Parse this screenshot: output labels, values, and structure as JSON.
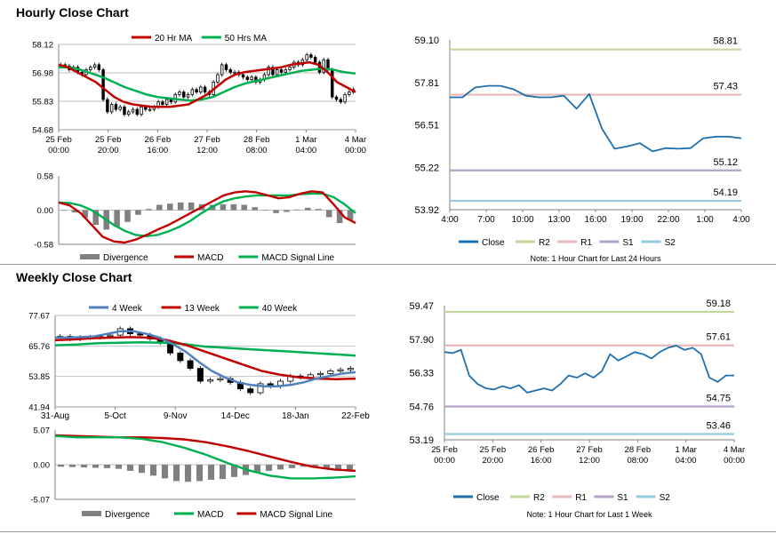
{
  "hourly_title": "Hourly Close Chart",
  "weekly_title": "Weekly Close Chart",
  "colors": {
    "ma_short": "#c00000",
    "ma_long": "#00b050",
    "close": "#1f6fae",
    "close_weekly": "#4f81bd",
    "r2": "#c3d69b",
    "r1": "#e6b9b8",
    "s1": "#b3a2c7",
    "s2": "#93cddd",
    "divergence": "#808080",
    "axis": "#808080"
  },
  "chart_data": [
    {
      "id": "hourly-candle",
      "type": "candlestick",
      "legend": [
        "20 Hr MA",
        "50 Hrs MA"
      ],
      "ylim": [
        54.68,
        58.12
      ],
      "yticks": [
        "58.12",
        "56.98",
        "55.83",
        "54.68"
      ],
      "xticks": [
        [
          "25 Feb",
          "00:00"
        ],
        [
          "25 Feb",
          "20:00"
        ],
        [
          "26 Feb",
          "16:00"
        ],
        [
          "27 Feb",
          "12:00"
        ],
        [
          "28 Feb",
          "08:00"
        ],
        [
          "1 Mar",
          "04:00"
        ],
        [
          "4 Mar",
          "00:00"
        ]
      ],
      "close": [
        57.3,
        57.25,
        57.1,
        57.2,
        57.0,
        56.9,
        57.1,
        57.2,
        57.3,
        57.1,
        55.9,
        55.4,
        55.7,
        55.5,
        55.6,
        55.3,
        55.4,
        55.5,
        55.3,
        55.6,
        55.5,
        55.5,
        55.6,
        55.8,
        55.7,
        55.9,
        55.8,
        56.1,
        56.2,
        56.0,
        56.1,
        56.3,
        56.2,
        56.4,
        56.2,
        56.1,
        56.6,
        56.9,
        57.3,
        57.1,
        57.0,
        57.0,
        56.9,
        56.8,
        56.7,
        56.8,
        56.6,
        56.7,
        56.9,
        57.2,
        56.9,
        57.1,
        57.0,
        57.1,
        57.2,
        57.4,
        57.3,
        57.5,
        57.7,
        57.6,
        57.4,
        57.0,
        57.5,
        57.1,
        56.0,
        55.9,
        55.8,
        56.1,
        56.2,
        56.3
      ],
      "ma20": [
        57.3,
        57.2,
        57.0,
        56.8,
        56.6,
        56.3,
        56.0,
        55.8,
        55.7,
        55.65,
        55.6,
        55.6,
        55.6,
        55.65,
        55.7,
        55.9,
        56.1,
        56.4,
        56.7,
        56.9,
        57.0,
        57.05,
        57.1,
        57.15,
        57.2,
        57.3,
        57.35,
        57.4,
        57.3,
        57.0,
        56.6,
        56.4,
        56.2
      ],
      "ma50": [
        57.2,
        57.2,
        57.1,
        56.95,
        56.8,
        56.6,
        56.4,
        56.25,
        56.1,
        56.0,
        55.95,
        55.9,
        55.85,
        55.9,
        56.0,
        56.2,
        56.4,
        56.55,
        56.65,
        56.75,
        56.85,
        56.95,
        57.05,
        57.1,
        57.15,
        57.1,
        57.0,
        56.95
      ]
    },
    {
      "id": "hourly-macd",
      "type": "macd",
      "legend": [
        "Divergence",
        "MACD",
        "MACD Signal Line"
      ],
      "ylim": [
        -0.58,
        0.58
      ],
      "yticks": [
        "0.58",
        "0.00",
        "-0.58"
      ],
      "macd": [
        0.13,
        0.08,
        -0.05,
        -0.25,
        -0.45,
        -0.53,
        -0.55,
        -0.5,
        -0.42,
        -0.33,
        -0.25,
        -0.15,
        -0.05,
        0.05,
        0.15,
        0.25,
        0.3,
        0.32,
        0.3,
        0.25,
        0.2,
        0.22,
        0.28,
        0.32,
        0.3,
        0.1,
        -0.12,
        -0.22
      ],
      "signal": [
        0.13,
        0.12,
        0.08,
        0.0,
        -0.12,
        -0.25,
        -0.35,
        -0.42,
        -0.44,
        -0.42,
        -0.36,
        -0.28,
        -0.18,
        -0.05,
        0.06,
        0.15,
        0.2,
        0.23,
        0.25,
        0.25,
        0.25,
        0.25,
        0.27,
        0.28,
        0.28,
        0.22,
        0.1,
        -0.05
      ],
      "divergence": [
        0.0,
        -0.04,
        -0.13,
        -0.25,
        -0.33,
        -0.28,
        -0.2,
        -0.08,
        0.02,
        0.09,
        0.11,
        0.13,
        0.13,
        0.1,
        0.09,
        0.1,
        0.1,
        0.09,
        0.05,
        0.0,
        -0.05,
        -0.03,
        0.01,
        0.04,
        0.02,
        -0.12,
        -0.22,
        -0.17
      ]
    },
    {
      "id": "hourly-levels",
      "type": "line",
      "legend": [
        "Close",
        "R2",
        "R1",
        "S1",
        "S2"
      ],
      "note": "Note: 1 Hour Chart for Last 24 Hours",
      "ylim": [
        53.92,
        59.1
      ],
      "yticks": [
        "59.10",
        "57.81",
        "56.51",
        "55.22",
        "53.92"
      ],
      "xticks": [
        "4:00",
        "7:00",
        "10:00",
        "13:00",
        "16:00",
        "19:00",
        "22:00",
        "1:00",
        "4:00"
      ],
      "levels": {
        "R2": 58.81,
        "R1": 57.43,
        "S1": 55.12,
        "S2": 54.19
      },
      "level_labels": {
        "R2": "58.81",
        "R1": "57.43",
        "S1": "55.12",
        "S2": "54.19"
      },
      "close": [
        57.35,
        57.35,
        57.65,
        57.7,
        57.7,
        57.6,
        57.4,
        57.35,
        57.35,
        57.4,
        57.0,
        57.45,
        56.4,
        55.78,
        55.85,
        55.95,
        55.7,
        55.8,
        55.78,
        55.8,
        56.1,
        56.15,
        56.15,
        56.1
      ]
    },
    {
      "id": "weekly-candle",
      "type": "candlestick",
      "legend": [
        "4 Week",
        "13 Week",
        "40 Week"
      ],
      "ylim": [
        41.94,
        77.67
      ],
      "yticks": [
        "77.67",
        "65.76",
        "53.85",
        "41.94"
      ],
      "xticks": [
        "31-Aug",
        "5-Oct",
        "9-Nov",
        "14-Dec",
        "18-Jan",
        "22-Feb"
      ],
      "close": [
        69.5,
        68.5,
        69.0,
        69.2,
        69.5,
        70.0,
        72.5,
        70.5,
        70.0,
        68.5,
        67.0,
        63.0,
        60.0,
        57.0,
        52.0,
        52.5,
        53.0,
        51.5,
        49.0,
        47.5,
        51.0,
        50.0,
        52.0,
        54.0,
        53.5,
        54.5,
        55.0,
        56.0,
        56.5,
        57.0
      ],
      "w4": [
        69.0,
        69.0,
        69.2,
        69.5,
        70.5,
        71.5,
        71.5,
        70.5,
        69.0,
        66.5,
        63.5,
        59.5,
        56.0,
        53.5,
        51.5,
        50.5,
        50.0,
        50.0,
        50.5,
        51.5,
        53.0,
        54.0,
        55.0,
        55.5
      ],
      "w13": [
        68.0,
        68.3,
        68.8,
        69.0,
        69.2,
        69.0,
        68.0,
        66.0,
        63.5,
        61.0,
        58.5,
        56.0,
        54.5,
        53.5,
        53.0,
        52.8,
        53.0
      ],
      "w40": [
        66.0,
        66.3,
        66.8,
        67.0,
        67.2,
        67.0,
        66.5,
        65.5,
        65.0,
        64.5,
        64.0,
        63.5,
        63.0,
        62.5,
        62.0
      ]
    },
    {
      "id": "weekly-macd",
      "type": "macd",
      "legend": [
        "Divergence",
        "MACD",
        "MACD Signal Line"
      ],
      "ylim": [
        -5.07,
        5.07
      ],
      "yticks": [
        "5.07",
        "0.00",
        "-5.07"
      ],
      "macd": [
        4.2,
        4.0,
        4.0,
        4.0,
        3.8,
        3.3,
        2.5,
        1.5,
        0.3,
        -0.8,
        -1.6,
        -2.0,
        -2.0,
        -1.9,
        -1.7
      ],
      "signal": [
        4.3,
        4.2,
        4.1,
        4.0,
        4.0,
        3.9,
        3.7,
        3.3,
        2.7,
        2.0,
        1.2,
        0.4,
        -0.3,
        -0.7,
        -0.9
      ],
      "divergence": [
        -0.3,
        -0.35,
        -0.4,
        -0.45,
        -0.5,
        -0.6,
        -0.9,
        -1.2,
        -1.6,
        -2.0,
        -2.4,
        -2.5,
        -2.4,
        -2.2,
        -2.1,
        -1.8,
        -1.5,
        -1.2,
        -0.9,
        -0.7,
        -0.5,
        -0.3,
        -0.2,
        -0.5,
        -0.8,
        -1.0
      ]
    },
    {
      "id": "weekly-levels",
      "type": "line",
      "legend": [
        "Close",
        "R2",
        "R1",
        "S1",
        "S2"
      ],
      "note": "Note: 1 Hour Chart for Last 1 Week",
      "ylim": [
        53.19,
        59.47
      ],
      "yticks": [
        "59.47",
        "57.90",
        "56.33",
        "54.76",
        "53.19"
      ],
      "xticks": [
        [
          "25 Feb",
          "00:00"
        ],
        [
          "25 Feb",
          "20:00"
        ],
        [
          "26 Feb",
          "16:00"
        ],
        [
          "27 Feb",
          "12:00"
        ],
        [
          "28 Feb",
          "08:00"
        ],
        [
          "1 Mar",
          "04:00"
        ],
        [
          "4 Mar",
          "00:00"
        ]
      ],
      "levels": {
        "R2": 59.18,
        "R1": 57.61,
        "S1": 54.75,
        "S2": 53.46
      },
      "level_labels": {
        "R2": "59.18",
        "R1": "57.61",
        "S1": "54.75",
        "S2": "53.46"
      },
      "close": [
        57.3,
        57.25,
        57.4,
        56.2,
        55.8,
        55.6,
        55.55,
        55.7,
        55.6,
        55.75,
        55.4,
        55.5,
        55.6,
        55.5,
        55.8,
        56.2,
        56.1,
        56.3,
        56.1,
        56.4,
        57.2,
        56.9,
        57.1,
        57.3,
        57.2,
        57.0,
        57.3,
        57.5,
        57.6,
        57.4,
        57.5,
        57.2,
        56.1,
        55.9,
        56.2,
        56.2
      ]
    }
  ]
}
